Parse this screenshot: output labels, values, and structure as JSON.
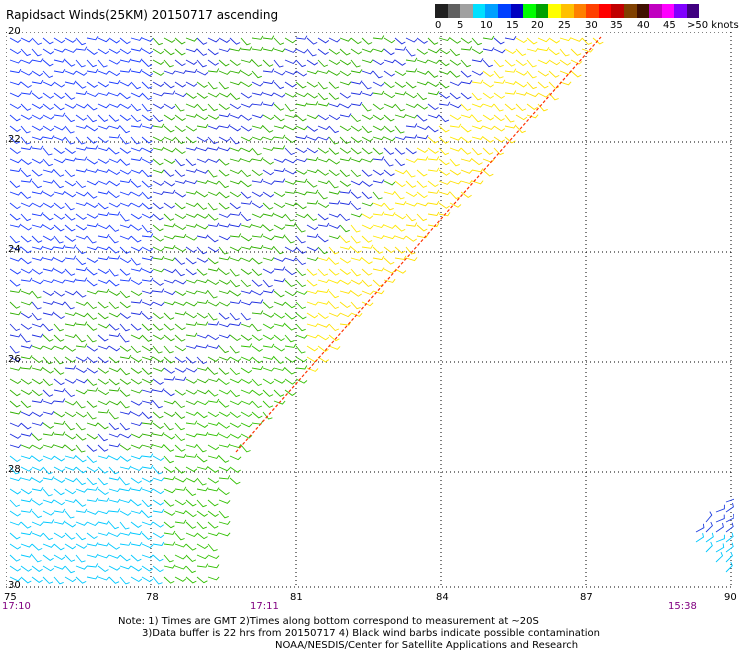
{
  "title": "Rapidsact Winds(25KM) 20150717 ascending",
  "legend": {
    "colors": [
      "#202020",
      "#606060",
      "#a0a0a0",
      "#00e0ff",
      "#00a0ff",
      "#0040ff",
      "#0000c0",
      "#00ff00",
      "#00a000",
      "#ffff00",
      "#ffc000",
      "#ff8000",
      "#ff4000",
      "#ff0000",
      "#c00000",
      "#804000",
      "#401000",
      "#c000c0",
      "#ff00ff",
      "#8000ff",
      "#400080"
    ],
    "labels": [
      "0",
      "5",
      "10",
      "15",
      "20",
      "25",
      "30",
      "35",
      "40",
      "45",
      ">50 knots"
    ]
  },
  "map": {
    "lat_labels": [
      "20",
      "22",
      "24",
      "26",
      "28",
      "30"
    ],
    "lon_labels": [
      "75",
      "78",
      "81",
      "84",
      "87",
      "90"
    ]
  },
  "times": [
    "17:10",
    "17:11",
    "15:38"
  ],
  "notes": [
    "Note: 1) Times are GMT 2)Times along bottom correspond to measurement at ~20S",
    "3)Data buffer is 22 hrs from 20150717 4) Black wind barbs indicate possible contamination",
    "NOAA/NESDIS/Center for Satellite Applications and Research"
  ]
}
